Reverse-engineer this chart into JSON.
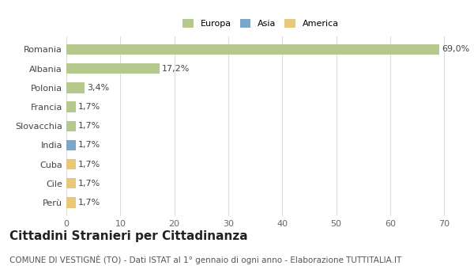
{
  "categories": [
    "Romania",
    "Albania",
    "Polonia",
    "Francia",
    "Slovacchia",
    "India",
    "Cuba",
    "Cile",
    "Perù"
  ],
  "values": [
    69.0,
    17.2,
    3.4,
    1.7,
    1.7,
    1.7,
    1.7,
    1.7,
    1.7
  ],
  "labels": [
    "69,0%",
    "17,2%",
    "3,4%",
    "1,7%",
    "1,7%",
    "1,7%",
    "1,7%",
    "1,7%",
    "1,7%"
  ],
  "colors": [
    "#b5c98e",
    "#b5c98e",
    "#b5c98e",
    "#b5c98e",
    "#b5c98e",
    "#7ba7c9",
    "#e8c97a",
    "#e8c97a",
    "#e8c97a"
  ],
  "legend": [
    {
      "label": "Europa",
      "color": "#b5c98e"
    },
    {
      "label": "Asia",
      "color": "#7ba7c9"
    },
    {
      "label": "America",
      "color": "#e8c97a"
    }
  ],
  "xlim": [
    0,
    72
  ],
  "xticks": [
    0,
    10,
    20,
    30,
    40,
    50,
    60,
    70
  ],
  "grid_color": "#dddddd",
  "background_color": "#ffffff",
  "title": "Cittadini Stranieri per Cittadinanza",
  "subtitle": "COMUNE DI VESTIGNÈ (TO) - Dati ISTAT al 1° gennaio di ogni anno - Elaborazione TUTTITALIA.IT",
  "title_fontsize": 11,
  "subtitle_fontsize": 7.5,
  "bar_height": 0.55,
  "label_fontsize": 8,
  "tick_fontsize": 8
}
